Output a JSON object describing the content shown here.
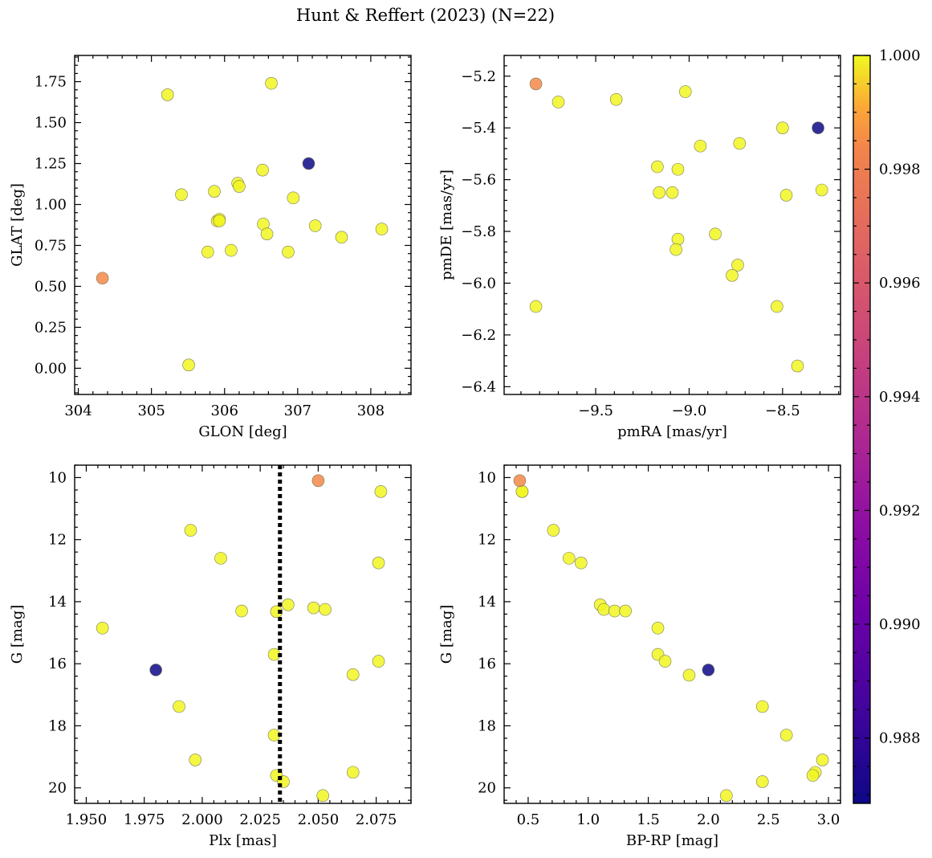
{
  "title": "Hunt & Reffert (2023) (N=22)",
  "colorbar": {
    "min": 0.98685,
    "max": 1.0,
    "ticks": [
      0.988,
      0.99,
      0.992,
      0.994,
      0.996,
      0.998,
      1.0
    ],
    "tick_labels": [
      "0.988",
      "0.990",
      "0.992",
      "0.994",
      "0.996",
      "0.998",
      "1.000"
    ],
    "colormap": "plasma"
  },
  "chart_data": [
    {
      "type": "scatter",
      "id": "glon-glat",
      "xlabel": "GLON [deg]",
      "ylabel": "GLAT [deg]",
      "xlim": [
        303.95,
        308.55
      ],
      "ylim": [
        -0.16,
        1.91
      ],
      "inverted_y": false,
      "xticks": [
        304,
        305,
        306,
        307,
        308
      ],
      "xtick_labels": [
        "304",
        "305",
        "306",
        "307",
        "308"
      ],
      "yticks": [
        0.0,
        0.25,
        0.5,
        0.75,
        1.0,
        1.25,
        1.5,
        1.75
      ],
      "ytick_labels": [
        "0.00",
        "0.25",
        "0.50",
        "0.75",
        "1.00",
        "1.25",
        "1.50",
        "1.75"
      ],
      "x": [
        305.22,
        306.64,
        307.15,
        305.41,
        305.86,
        306.18,
        306.2,
        306.52,
        306.94,
        305.9,
        305.93,
        306.53,
        306.58,
        307.24,
        307.6,
        308.15,
        305.77,
        306.09,
        306.87,
        304.33,
        305.51,
        305.93
      ],
      "y": [
        1.67,
        1.74,
        1.25,
        1.06,
        1.08,
        1.13,
        1.11,
        1.21,
        1.04,
        0.9,
        0.91,
        0.88,
        0.82,
        0.87,
        0.8,
        0.85,
        0.71,
        0.72,
        0.71,
        0.55,
        0.02,
        0.9
      ],
      "c": [
        0.9999,
        0.9999,
        0.98685,
        0.9999,
        0.9999,
        0.9999,
        0.9999,
        0.9999,
        0.9999,
        0.9999,
        0.9999,
        0.9999,
        0.9999,
        0.9999,
        0.9999,
        0.9999,
        0.9999,
        0.9999,
        0.9999,
        0.9962,
        0.9999,
        0.9999
      ]
    },
    {
      "type": "scatter",
      "id": "pmra-pmde",
      "xlabel": "pmRA [mas/yr]",
      "ylabel": "pmDE [mas/yr]",
      "xlim": [
        -9.99,
        -8.19
      ],
      "ylim": [
        -6.43,
        -5.12
      ],
      "inverted_y": false,
      "xticks": [
        -9.5,
        -9.0,
        -8.5
      ],
      "xtick_labels": [
        "−9.5",
        "−9.0",
        "−8.5"
      ],
      "yticks": [
        -6.4,
        -6.2,
        -6.0,
        -5.8,
        -5.6,
        -5.4,
        -5.2
      ],
      "ytick_labels": [
        "−6.4",
        "−6.2",
        "−6.0",
        "−5.8",
        "−5.6",
        "−5.4",
        "−5.2"
      ],
      "x": [
        -9.82,
        -9.7,
        -9.39,
        -9.02,
        -8.5,
        -8.31,
        -8.94,
        -8.73,
        -9.17,
        -9.06,
        -9.16,
        -9.09,
        -8.48,
        -8.29,
        -9.06,
        -9.07,
        -8.86,
        -8.74,
        -8.77,
        -9.82,
        -8.53,
        -8.42
      ],
      "y": [
        -5.23,
        -5.3,
        -5.29,
        -5.26,
        -5.4,
        -5.4,
        -5.47,
        -5.46,
        -5.55,
        -5.56,
        -5.65,
        -5.65,
        -5.66,
        -5.64,
        -5.83,
        -5.87,
        -5.81,
        -5.93,
        -5.97,
        -6.09,
        -6.09,
        -6.32
      ],
      "c": [
        0.9962,
        0.9999,
        0.9999,
        0.9999,
        0.9999,
        0.98685,
        0.9999,
        0.9999,
        0.9999,
        0.9999,
        0.9999,
        0.9999,
        0.9999,
        0.9999,
        0.9999,
        0.9999,
        0.9999,
        0.9999,
        0.9999,
        0.9999,
        0.9999,
        0.9999
      ]
    },
    {
      "type": "scatter",
      "id": "plx-g",
      "xlabel": "Plx [mas]",
      "ylabel": "G [mag]",
      "xlim": [
        1.945,
        2.09
      ],
      "ylim": [
        20.5,
        9.6
      ],
      "inverted_y": true,
      "vline": {
        "x": 2.0335,
        "style": "dotted"
      },
      "xticks": [
        1.95,
        1.975,
        2.0,
        2.025,
        2.05,
        2.075
      ],
      "xtick_labels": [
        "1.950",
        "1.975",
        "2.000",
        "2.025",
        "2.050",
        "2.075"
      ],
      "yticks": [
        10,
        12,
        14,
        16,
        18,
        20
      ],
      "ytick_labels": [
        "10",
        "12",
        "14",
        "16",
        "18",
        "20"
      ],
      "x": [
        2.05,
        2.077,
        1.995,
        2.008,
        2.076,
        2.037,
        2.017,
        2.032,
        2.048,
        2.053,
        1.957,
        2.031,
        2.076,
        1.98,
        2.065,
        1.99,
        2.031,
        1.997,
        2.032,
        2.035,
        2.065,
        2.052
      ],
      "y": [
        10.1,
        10.45,
        11.7,
        12.6,
        12.75,
        14.1,
        14.3,
        14.32,
        14.2,
        14.25,
        14.85,
        15.7,
        15.92,
        16.2,
        16.35,
        17.38,
        18.3,
        19.1,
        19.6,
        19.8,
        19.5,
        20.25
      ],
      "c": [
        0.9962,
        0.9999,
        0.9999,
        0.9999,
        0.9999,
        0.9999,
        0.9999,
        0.9999,
        0.9999,
        0.9999,
        0.9999,
        0.9999,
        0.9999,
        0.98685,
        0.9999,
        0.9999,
        0.9999,
        0.9999,
        0.9999,
        0.9999,
        0.9999,
        0.9999
      ]
    },
    {
      "type": "scatter",
      "id": "bprp-g",
      "xlabel": "BP-RP [mag]",
      "ylabel": "G [mag]",
      "xlim": [
        0.3,
        3.1
      ],
      "ylim": [
        20.5,
        9.6
      ],
      "inverted_y": true,
      "xticks": [
        0.5,
        1.0,
        1.5,
        2.0,
        2.5,
        3.0
      ],
      "xtick_labels": [
        "0.5",
        "1.0",
        "1.5",
        "2.0",
        "2.5",
        "3.0"
      ],
      "yticks": [
        10,
        12,
        14,
        16,
        18,
        20
      ],
      "ytick_labels": [
        "10",
        "12",
        "14",
        "16",
        "18",
        "20"
      ],
      "x": [
        0.43,
        0.45,
        0.71,
        0.84,
        0.94,
        1.1,
        1.13,
        1.22,
        1.31,
        1.58,
        1.58,
        1.64,
        2.0,
        1.84,
        2.45,
        2.65,
        2.95,
        2.89,
        2.87,
        2.45,
        2.15,
        0.45
      ],
      "y": [
        10.1,
        10.45,
        11.7,
        12.6,
        12.75,
        14.1,
        14.25,
        14.3,
        14.3,
        14.85,
        15.7,
        15.92,
        16.2,
        16.37,
        17.38,
        18.3,
        19.1,
        19.5,
        19.6,
        19.8,
        20.25,
        10.45
      ],
      "c": [
        0.9962,
        0.9999,
        0.9999,
        0.9999,
        0.9999,
        0.9999,
        0.9999,
        0.9999,
        0.9999,
        0.9999,
        0.9999,
        0.9999,
        0.98685,
        0.9999,
        0.9999,
        0.9999,
        0.9999,
        0.9999,
        0.9999,
        0.9999,
        0.9999,
        0.9999
      ]
    }
  ]
}
